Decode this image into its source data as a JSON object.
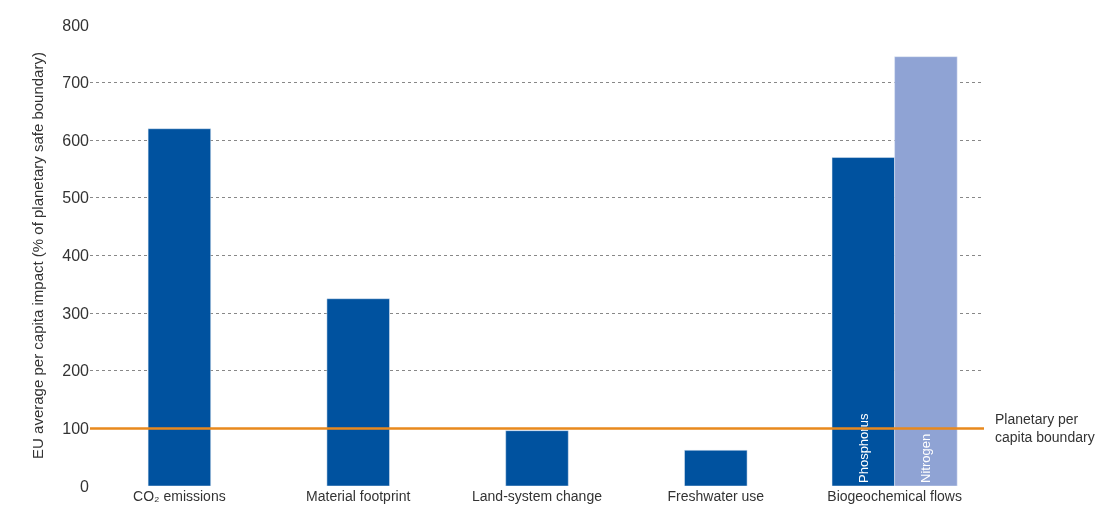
{
  "chart_data": {
    "type": "bar",
    "ylabel": "EU average per capita impact (% of planetary safe boundary)",
    "categories": [
      "CO₂ emissions",
      "Material footprint",
      "Land-system change",
      "Freshwater use",
      "Biogeochemical flows"
    ],
    "series": [
      {
        "name": "Phosphorus",
        "color": "#00529f",
        "values": [
          620,
          325,
          96,
          62,
          570
        ]
      },
      {
        "name": "Nitrogen",
        "color": "#8fa3d4",
        "values": [
          null,
          null,
          null,
          null,
          745
        ]
      }
    ],
    "ylim": [
      0,
      800
    ],
    "yticks": [
      0,
      100,
      200,
      300,
      400,
      500,
      600,
      700,
      800
    ],
    "grid": "y",
    "legend": false,
    "ref_lines": [
      {
        "axis": "y",
        "value": 100,
        "label": "Planetary per capita boundary",
        "color": "#e8891d",
        "line_style": "solid"
      }
    ]
  }
}
